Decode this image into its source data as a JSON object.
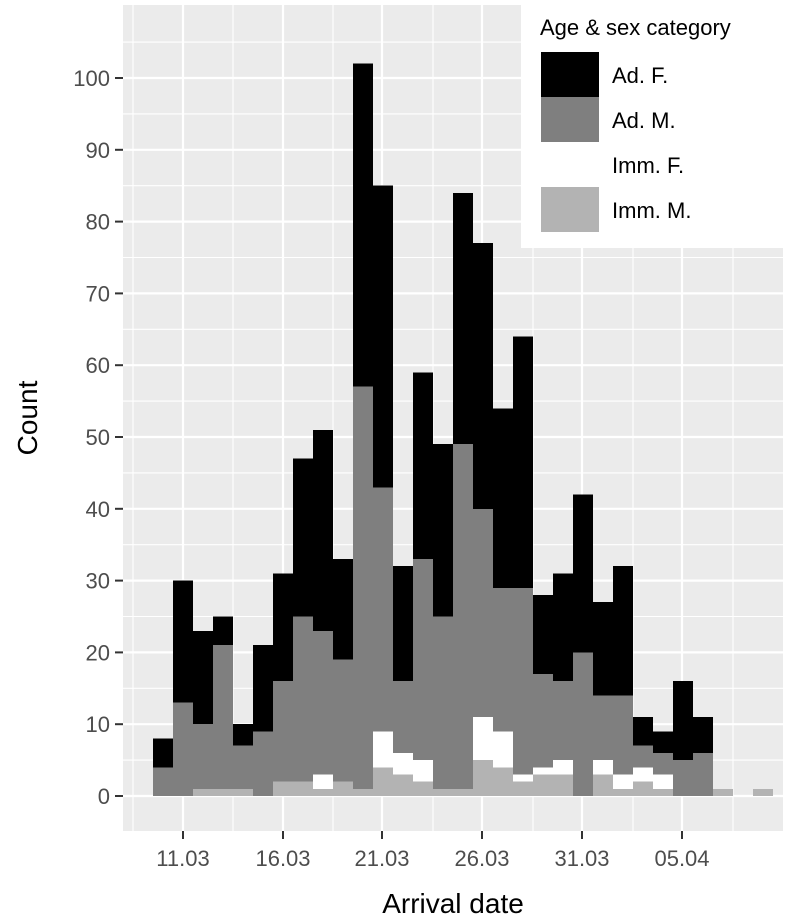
{
  "chart_data": {
    "type": "bar",
    "stacked": true,
    "xlabel": "Arrival date",
    "ylabel": "Count",
    "x_tick_labels": [
      "11.03",
      "16.03",
      "21.03",
      "26.03",
      "31.03",
      "05.04"
    ],
    "y_ticks": [
      0,
      10,
      20,
      30,
      40,
      50,
      60,
      70,
      80,
      90,
      100
    ],
    "ylim": [
      -4,
      110
    ],
    "grid": true,
    "legend": {
      "title": "Age & sex category",
      "placement": "top-right"
    },
    "categories": [
      "09.03",
      "10.03",
      "11.03",
      "12.03",
      "13.03",
      "14.03",
      "15.03",
      "16.03",
      "17.03",
      "18.03",
      "19.03",
      "20.03",
      "21.03",
      "22.03",
      "23.03",
      "24.03",
      "25.03",
      "26.03",
      "27.03",
      "28.03",
      "29.03",
      "30.03",
      "31.03",
      "01.04",
      "02.04",
      "03.04",
      "04.04",
      "05.04",
      "06.04",
      "07.04",
      "08.04"
    ],
    "series": [
      {
        "name": "Imm. M.",
        "color": "#b3b3b3",
        "values": [
          0,
          0,
          1,
          1,
          1,
          0,
          2,
          2,
          1,
          2,
          1,
          4,
          3,
          2,
          1,
          1,
          5,
          4,
          2,
          3,
          3,
          0,
          3,
          1,
          2,
          1,
          0,
          0,
          1,
          0,
          1
        ]
      },
      {
        "name": "Imm. F.",
        "color": "#ffffff",
        "values": [
          0,
          0,
          0,
          0,
          0,
          0,
          0,
          0,
          2,
          0,
          0,
          5,
          3,
          3,
          0,
          0,
          6,
          5,
          1,
          1,
          2,
          0,
          2,
          2,
          2,
          2,
          0,
          0,
          0,
          0,
          0
        ]
      },
      {
        "name": "Ad. M.",
        "color": "#7f7f7f",
        "values": [
          4,
          13,
          9,
          20,
          6,
          9,
          14,
          23,
          20,
          17,
          56,
          34,
          10,
          28,
          24,
          48,
          29,
          20,
          26,
          13,
          11,
          20,
          9,
          11,
          3,
          3,
          5,
          6,
          0,
          0,
          0
        ]
      },
      {
        "name": "Ad. F.",
        "color": "#000000",
        "values": [
          4,
          17,
          13,
          4,
          3,
          12,
          15,
          22,
          28,
          14,
          45,
          42,
          16,
          26,
          24,
          35,
          37,
          25,
          35,
          11,
          15,
          22,
          13,
          18,
          4,
          3,
          11,
          5,
          0,
          0,
          0
        ]
      }
    ]
  }
}
